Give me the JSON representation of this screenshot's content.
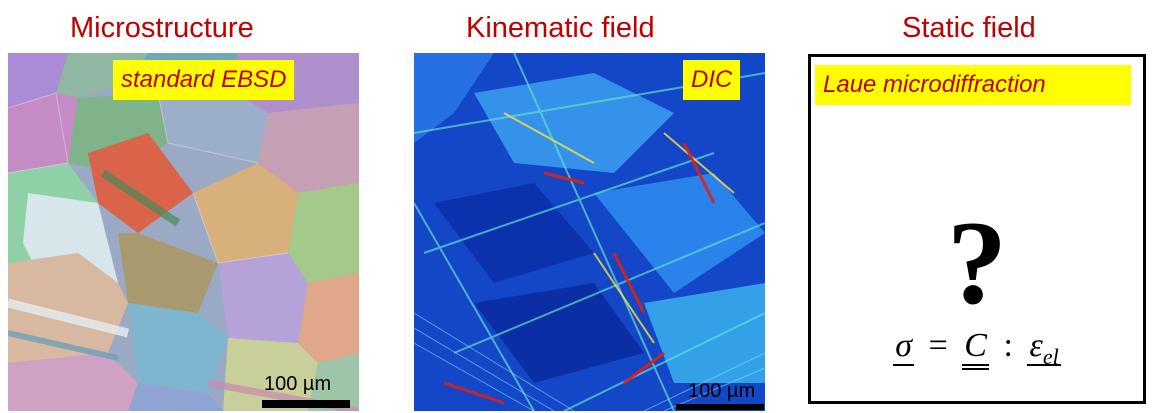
{
  "headings": {
    "microstructure": "Microstructure",
    "kinematic": "Kinematic field",
    "static": "Static field"
  },
  "labels": {
    "ebsd": "standard EBSD",
    "dic": "DIC",
    "laue": "Laue microdiffraction"
  },
  "scale_bars": {
    "ebsd": "100 µm",
    "dic": "100 µm"
  },
  "static_panel": {
    "question_mark": "?",
    "formula": {
      "lhs": "σ",
      "equals": "=",
      "tensor": "C",
      "colon": ":",
      "strain": "ε",
      "strain_sub": "el"
    }
  },
  "colors": {
    "heading": "#c00000",
    "label_background": "#ffff00",
    "label_text": "#c00000"
  }
}
